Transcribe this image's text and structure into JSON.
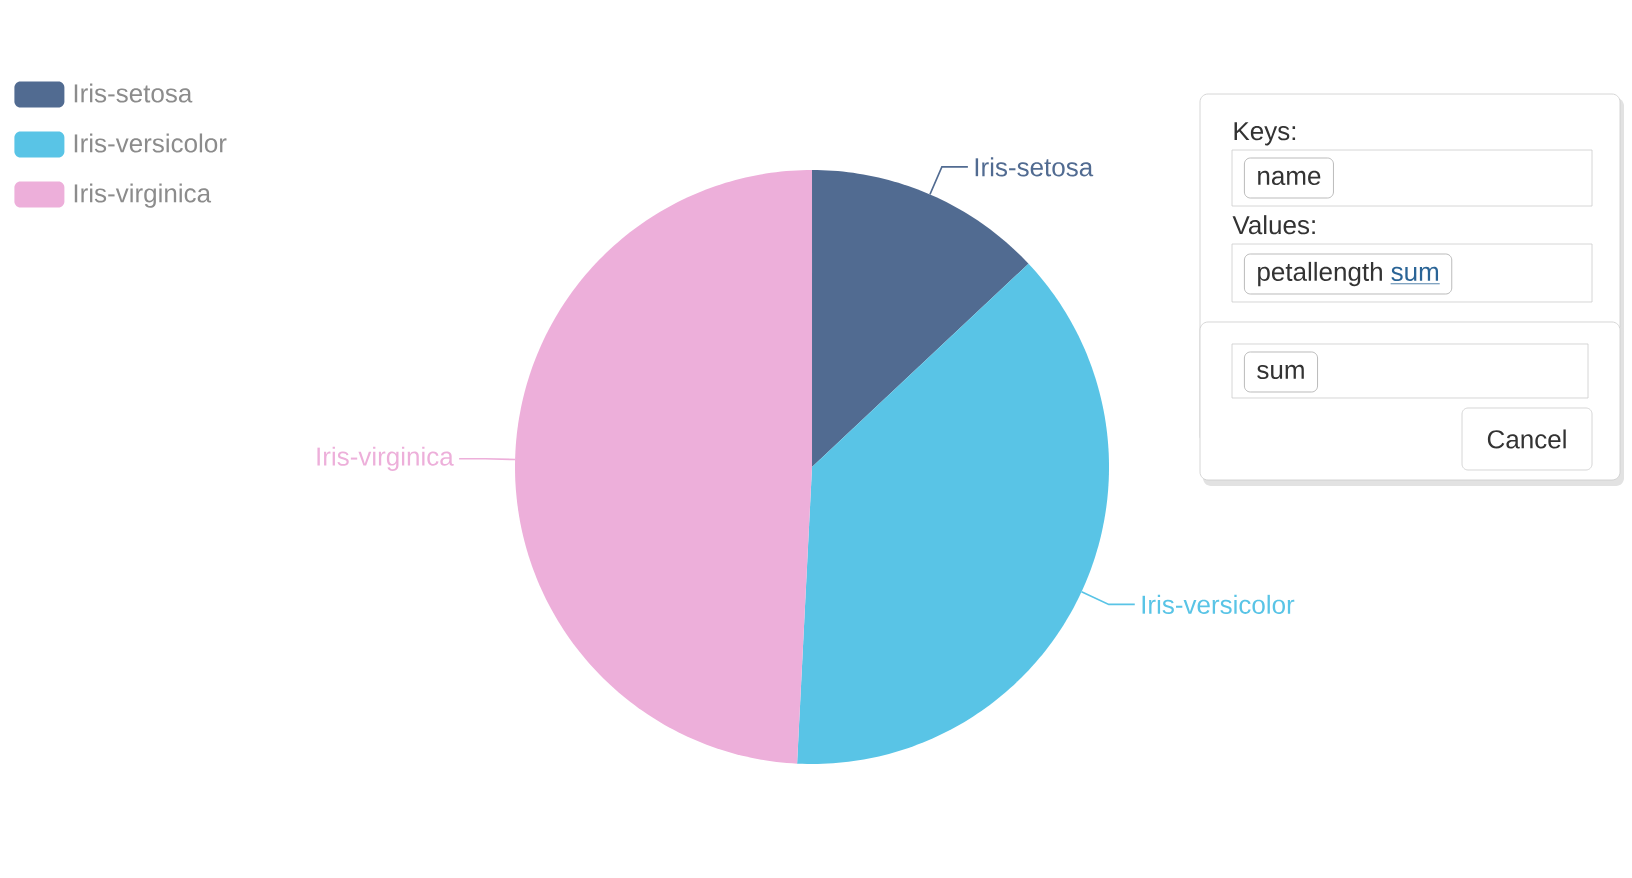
{
  "chart_data": [
    {
      "type": "pie",
      "categories": [
        "Iris-setosa",
        "Iris-versicolor",
        "Iris-virginica"
      ],
      "values": [
        13.0,
        37.8,
        49.2
      ],
      "colors": [
        "#516b91",
        "#59c4e6",
        "#edafda"
      ],
      "legend": "top left"
    },
    {
      "type": "other",
      "annotations": [
        "Keys:",
        "name",
        "Values:",
        "petallength",
        "sum",
        "sum",
        "Cancel"
      ]
    }
  ]
}
